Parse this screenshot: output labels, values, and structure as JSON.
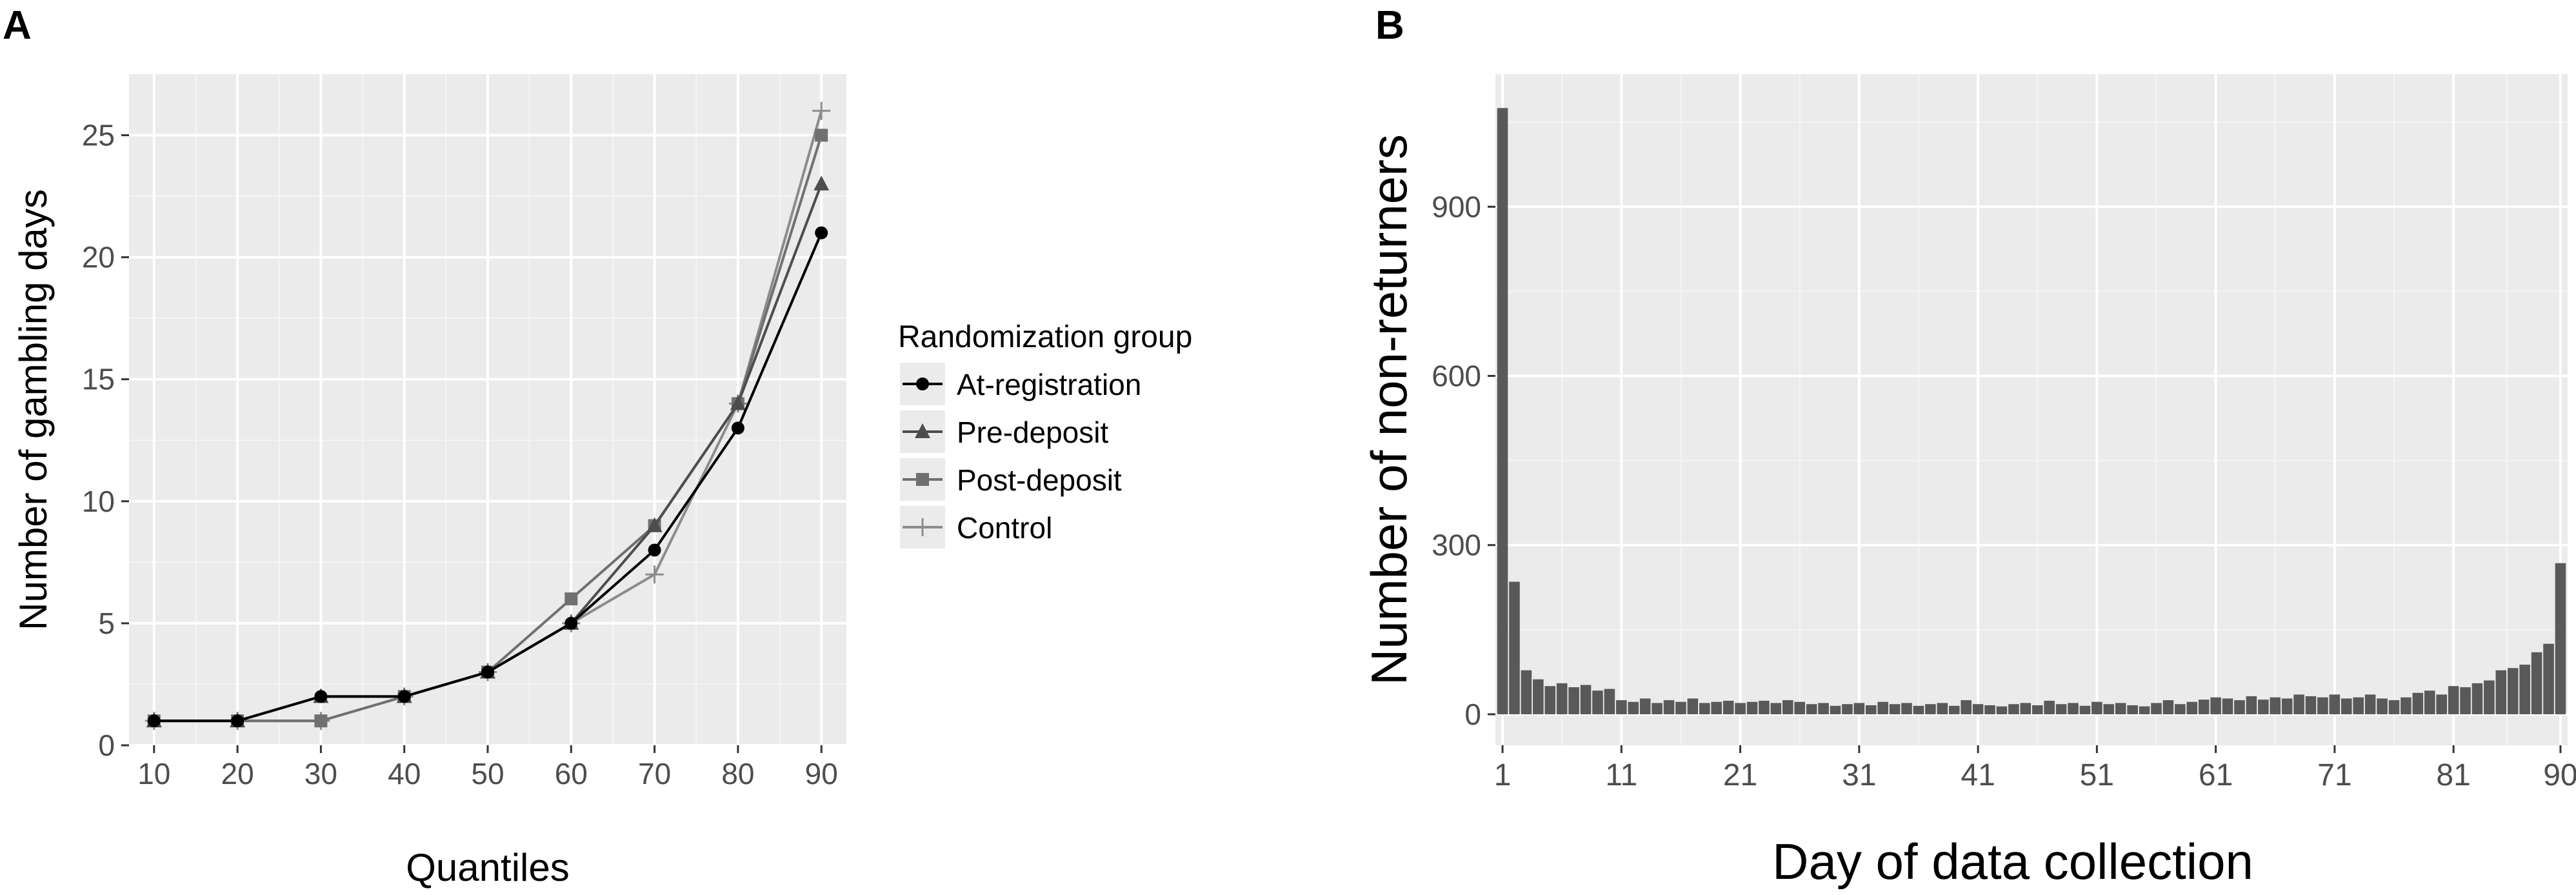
{
  "chart_data": [
    {
      "panel_label": "A",
      "type": "line",
      "xlabel": "Quantiles",
      "ylabel": "Number of gambling days",
      "x": [
        10,
        20,
        30,
        40,
        50,
        60,
        70,
        80,
        90
      ],
      "xlim": [
        7,
        93
      ],
      "ylim": [
        0,
        27.5
      ],
      "xticks": [
        "10",
        "20",
        "30",
        "40",
        "50",
        "60",
        "70",
        "80",
        "90"
      ],
      "yticks": [
        "0",
        "5",
        "10",
        "15",
        "20",
        "25"
      ],
      "grid": true,
      "legend": {
        "title": "Randomization group",
        "placement": "right"
      },
      "series": [
        {
          "name": "At-registration",
          "marker": "circle",
          "color": "#000000",
          "values": [
            1,
            1,
            2,
            2,
            3,
            5,
            8,
            13,
            21
          ]
        },
        {
          "name": "Pre-deposit",
          "marker": "triangle",
          "color": "#4d4d4d",
          "values": [
            1,
            1,
            2,
            2,
            3,
            5,
            9,
            14,
            23
          ]
        },
        {
          "name": "Post-deposit",
          "marker": "square",
          "color": "#707070",
          "values": [
            1,
            1,
            1,
            2,
            3,
            6,
            9,
            14,
            25
          ]
        },
        {
          "name": "Control",
          "marker": "cross",
          "color": "#8c8c8c",
          "values": [
            1,
            1,
            1,
            2,
            3,
            5,
            7,
            14,
            26
          ]
        }
      ]
    },
    {
      "panel_label": "B",
      "type": "bar",
      "xlabel": "Day of data collection",
      "ylabel": "Number of non-returners",
      "xlim": [
        0.4,
        90.6
      ],
      "ylim": [
        -55,
        1135
      ],
      "xticks": [
        "1",
        "11",
        "21",
        "31",
        "41",
        "51",
        "61",
        "71",
        "81",
        "90"
      ],
      "yticks": [
        "0",
        "300",
        "600",
        "900"
      ],
      "grid": true,
      "bar_color": "#595959",
      "days": [
        1,
        2,
        3,
        4,
        5,
        6,
        7,
        8,
        9,
        10,
        11,
        12,
        13,
        14,
        15,
        16,
        17,
        18,
        19,
        20,
        21,
        22,
        23,
        24,
        25,
        26,
        27,
        28,
        29,
        30,
        31,
        32,
        33,
        34,
        35,
        36,
        37,
        38,
        39,
        40,
        41,
        42,
        43,
        44,
        45,
        46,
        47,
        48,
        49,
        50,
        51,
        52,
        53,
        54,
        55,
        56,
        57,
        58,
        59,
        60,
        61,
        62,
        63,
        64,
        65,
        66,
        67,
        68,
        69,
        70,
        71,
        72,
        73,
        74,
        75,
        76,
        77,
        78,
        79,
        80,
        81,
        82,
        83,
        84,
        85,
        86,
        87,
        88,
        89,
        90
      ],
      "values": [
        1075,
        235,
        78,
        62,
        50,
        55,
        48,
        52,
        42,
        45,
        25,
        22,
        28,
        20,
        25,
        22,
        28,
        20,
        22,
        24,
        20,
        22,
        24,
        20,
        25,
        22,
        18,
        20,
        15,
        18,
        20,
        16,
        22,
        18,
        20,
        15,
        18,
        20,
        15,
        25,
        18,
        16,
        14,
        18,
        20,
        16,
        24,
        18,
        20,
        15,
        22,
        18,
        20,
        16,
        14,
        20,
        25,
        18,
        22,
        26,
        30,
        28,
        25,
        32,
        26,
        30,
        28,
        35,
        32,
        30,
        35,
        28,
        30,
        35,
        28,
        25,
        30,
        38,
        42,
        35,
        50,
        48,
        55,
        60,
        78,
        82,
        88,
        110,
        125,
        268
      ]
    }
  ]
}
